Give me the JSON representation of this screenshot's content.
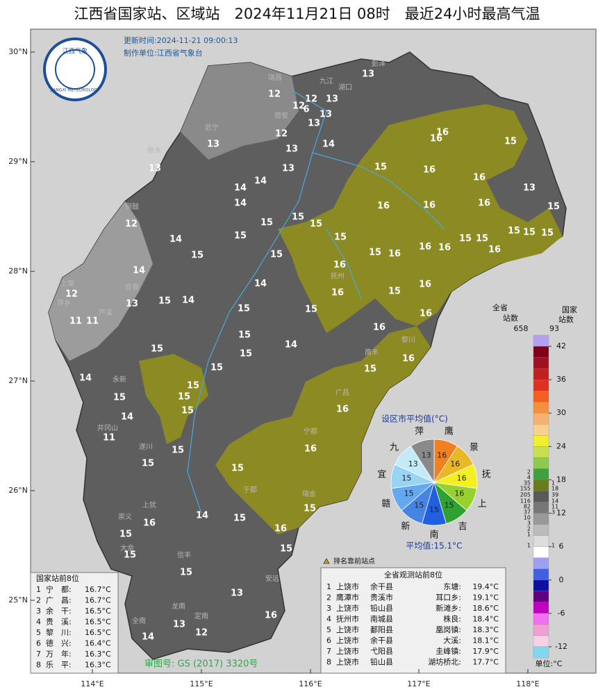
{
  "header": {
    "title": "江西省国家站、区域站　2024年11月21日 08时　最近24小时最高气温",
    "update_time": "更新时间:2024-11-21 09:00:13",
    "producer": "制作单位:江西省气象台",
    "logo_cn": "江西气象",
    "logo_en": "JIANGXI METEOROLOGY"
  },
  "map": {
    "lat_labels": [
      "30°N",
      "29°N",
      "28°N",
      "27°N",
      "26°N",
      "25°N"
    ],
    "lon_labels": [
      "114°E",
      "115°E",
      "116°E",
      "117°E",
      "118°E"
    ],
    "place_names": [
      "彭泽",
      "瑞昌",
      "九江",
      "湖口",
      "德安",
      "武宁",
      "修水",
      "铜鼓",
      "宜春",
      "萍乡",
      "芦溪",
      "上栗",
      "抚州",
      "黎川",
      "广昌",
      "宁都",
      "瑞金",
      "于都",
      "安远",
      "定南",
      "龙南",
      "全南",
      "信丰",
      "大余",
      "崇义",
      "上犹",
      "遂川",
      "永新",
      "井冈山",
      "南丰"
    ],
    "station_values": [
      13,
      12,
      12,
      13,
      12,
      6,
      13,
      13,
      12,
      16,
      13,
      13,
      14,
      16,
      15,
      13,
      13,
      15,
      16,
      14,
      16,
      14,
      13,
      14,
      16,
      16,
      16,
      15,
      12,
      15,
      15,
      15,
      15,
      15,
      15,
      14,
      15,
      15,
      15,
      15,
      15,
      15,
      15,
      16,
      16,
      16,
      16,
      14,
      16,
      14,
      15,
      16,
      12,
      13,
      15,
      14,
      15,
      16,
      15,
      11,
      11,
      15,
      16,
      16,
      15,
      14,
      15,
      15,
      16,
      15,
      14,
      15,
      15,
      15,
      14,
      15,
      16,
      11,
      16,
      15,
      15,
      15,
      14,
      15,
      15,
      16,
      15,
      16,
      15,
      15,
      15,
      13,
      16,
      13,
      12,
      14
    ],
    "audit_number": "审图号: GS (2017) 3320号",
    "top_marker_note": "排名靠前站点"
  },
  "pie": {
    "title": "设区市平均值(°C)",
    "mean_label": "平均值:15.1°C",
    "cities": [
      {
        "name": "鹰",
        "value": 16,
        "color": "#f08020"
      },
      {
        "name": "景",
        "value": 16,
        "color": "#e8b828"
      },
      {
        "name": "抚",
        "value": 16,
        "color": "#f4f020"
      },
      {
        "name": "上",
        "value": 16,
        "color": "#98d030"
      },
      {
        "name": "吉",
        "value": 15,
        "color": "#30a030"
      },
      {
        "name": "南",
        "value": 15,
        "color": "#2060e0"
      },
      {
        "name": "新",
        "value": 15,
        "color": "#4684e4"
      },
      {
        "name": "赣",
        "value": 15,
        "color": "#64a8f0"
      },
      {
        "name": "宜",
        "value": 15,
        "color": "#98d4f4"
      },
      {
        "name": "九",
        "value": 13,
        "color": "#c4eaf8"
      },
      {
        "name": "萍",
        "value": 13,
        "color": "#8a8a8a"
      }
    ]
  },
  "legend": {
    "province_label": "全省",
    "province_sub": "站数",
    "province_total": 658,
    "national_label": "国家",
    "national_sub": "站数",
    "national_total": 93,
    "lim": [
      -14,
      44
    ],
    "ticks": [
      42,
      36,
      30,
      24,
      18,
      12,
      6,
      0,
      -6,
      -12
    ],
    "colors": [
      "#b8a0f0",
      "#800018",
      "#a01020",
      "#c02020",
      "#e03020",
      "#f06020",
      "#f49040",
      "#f6b070",
      "#f8d090",
      "#f0f030",
      "#c8e050",
      "#90c850",
      "#40a040",
      "#6b7a1a",
      "#5a5a5a",
      "#777777",
      "#999999",
      "#bbbbbb",
      "#dddddd",
      "#ffffff",
      "#a0a0f0",
      "#4060e0",
      "#1010a0",
      "#600080",
      "#c000c0",
      "#f070f0",
      "#f0a0d0",
      "#f8d0e8",
      "#80d8f0"
    ],
    "province_counts": [
      2,
      4,
      35,
      155,
      205,
      116,
      82,
      37,
      10,
      3,
      2,
      1,
      1
    ],
    "national_counts": [
      1,
      18,
      39,
      14,
      11,
      3,
      1
    ],
    "unit": "单位:°C"
  },
  "national_top": {
    "title": "国家站前8位",
    "rows": [
      [
        "1",
        "宁　都:",
        "16.7°C"
      ],
      [
        "2",
        "广　昌:",
        "16.7°C"
      ],
      [
        "3",
        "余　干:",
        "16.5°C"
      ],
      [
        "4",
        "贵　溪:",
        "16.5°C"
      ],
      [
        "5",
        "黎　川:",
        "16.5°C"
      ],
      [
        "6",
        "德　兴:",
        "16.4°C"
      ],
      [
        "7",
        "万　年:",
        "16.3°C"
      ],
      [
        "8",
        "乐　平:",
        "16.3°C"
      ]
    ]
  },
  "province_top": {
    "title": "全省观测站前8位",
    "rows": [
      [
        "1",
        "上饶市",
        "余干县",
        "东塘:",
        "19.4°C"
      ],
      [
        "2",
        "鹰潭市",
        "贵溪市",
        "耳口乡:",
        "19.1°C"
      ],
      [
        "3",
        "上饶市",
        "铅山县",
        "新滩乡:",
        "18.6°C"
      ],
      [
        "4",
        "抚州市",
        "南城县",
        "株良:",
        "18.4°C"
      ],
      [
        "5",
        "上饶市",
        "鄱阳县",
        "凰岗镇:",
        "18.3°C"
      ],
      [
        "6",
        "上饶市",
        "余干县",
        "大溪:",
        "18.1°C"
      ],
      [
        "7",
        "上饶市",
        "弋阳县",
        "圭峰镇:",
        "17.9°C"
      ],
      [
        "8",
        "上饶市",
        "铅山县",
        "湖坊桥北:",
        "17.7°C"
      ]
    ]
  }
}
